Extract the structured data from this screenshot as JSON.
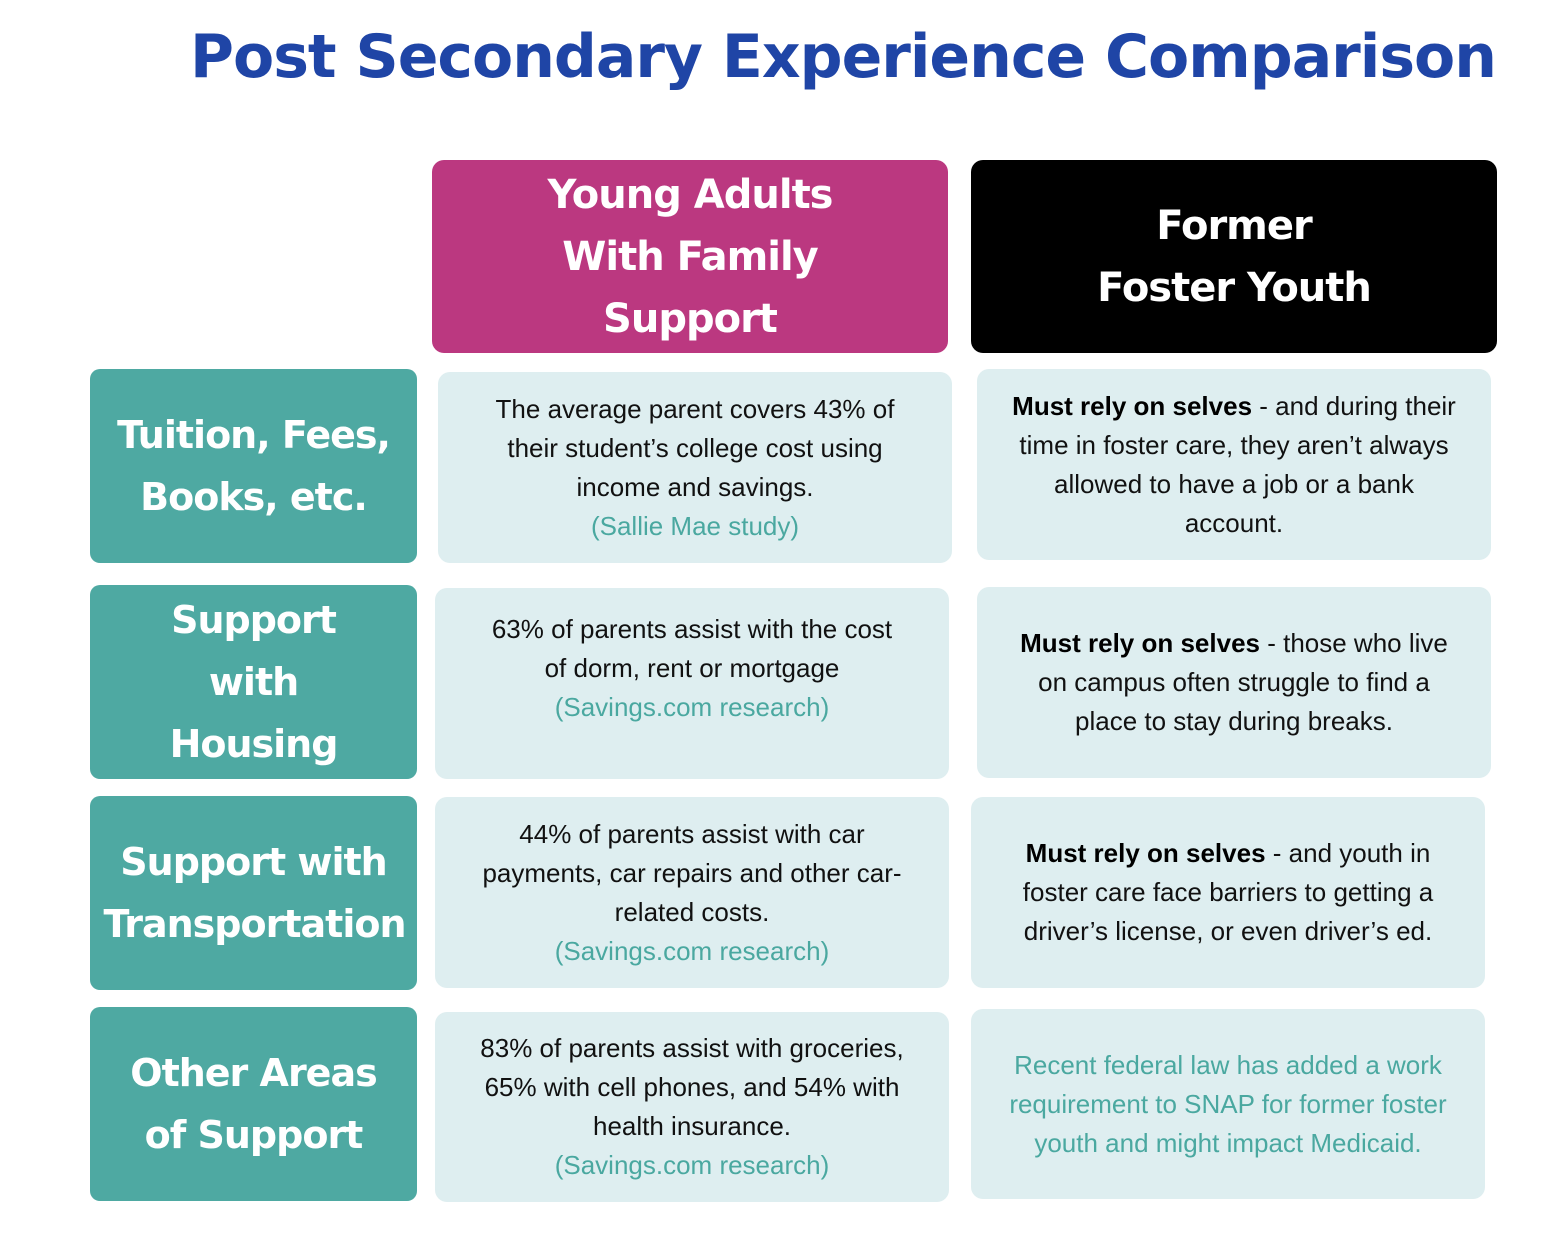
{
  "title": "Post Secondary Experience Comparison",
  "headers": {
    "family": "Young Adults With Family Support",
    "foster": "Former Foster Youth"
  },
  "rows": [
    {
      "label": "Tuition, Fees, Books, etc.",
      "family_text": "The average parent covers 43% of their student’s college cost using income and savings.",
      "family_source": "(Sallie Mae study)",
      "foster_bold": "Must rely on selves",
      "foster_text": " - and during their time in foster care, they aren’t always allowed to have a job or a bank account."
    },
    {
      "label": "Support with Housing",
      "family_text": "63% of parents assist with the cost of dorm, rent or mortgage",
      "family_source": "(Savings.com research)",
      "foster_bold": "Must rely on selves",
      "foster_text": " - those who live on campus often struggle to find a place to stay during breaks."
    },
    {
      "label": "Support with Transportation",
      "family_text": "44% of parents assist with car payments, car repairs and other car-related costs.",
      "family_source": "(Savings.com research)",
      "foster_bold": "Must rely on selves",
      "foster_text": " - and youth in foster care face barriers to getting a driver’s license, or even driver’s ed."
    },
    {
      "label": "Other Areas of Support",
      "family_text": "83% of parents assist with groceries, 65% with cell phones, and 54% with health insurance.",
      "family_source": "(Savings.com research)",
      "foster_text": "Recent federal law has added a work requirement to SNAP for former foster youth and might impact Medicaid."
    }
  ],
  "colors": {
    "title": "#1f45a6",
    "family_header": "#bb3880",
    "foster_header": "#000000",
    "row_label": "#4ea9a2",
    "cell_bg": "#deeef0",
    "source_text": "#4aa8a0"
  }
}
